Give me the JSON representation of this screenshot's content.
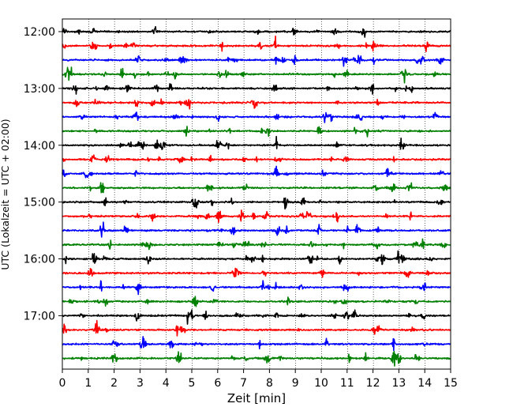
{
  "chart_data": {
    "type": "line",
    "title": "",
    "xlabel": "Zeit  [min]",
    "ylabel": "UTC (Lokalzeit = UTC + 02:00)",
    "xlim": [
      0,
      15
    ],
    "x_ticks": [
      0,
      1,
      2,
      3,
      4,
      5,
      6,
      7,
      8,
      9,
      10,
      11,
      12,
      13,
      14,
      15
    ],
    "x_tick_labels": [
      "0",
      "1",
      "2",
      "3",
      "4",
      "5",
      "6",
      "7",
      "8",
      "9",
      "10",
      "11",
      "12",
      "13",
      "14",
      "15"
    ],
    "y_tick_labels": [
      "12:00",
      "13:00",
      "14:00",
      "15:00",
      "16:00",
      "17:00"
    ],
    "y_tick_rows": [
      0,
      4,
      8,
      12,
      16,
      20
    ],
    "grid": "vertical dotted",
    "trace_colors": [
      "#000000",
      "#ff0000",
      "#0000ff",
      "#008000"
    ],
    "trace_minutes": 15,
    "trace_labels": [
      "12:00",
      "12:15",
      "12:30",
      "12:45",
      "13:00",
      "13:15",
      "13:30",
      "13:45",
      "14:00",
      "14:15",
      "14:30",
      "14:45",
      "15:00",
      "15:15",
      "15:30",
      "15:45",
      "16:00",
      "16:15",
      "16:30",
      "16:45",
      "17:00",
      "17:15",
      "17:30",
      "17:45"
    ],
    "large_event": {
      "trace": "17:45",
      "minute": 12.8
    }
  }
}
